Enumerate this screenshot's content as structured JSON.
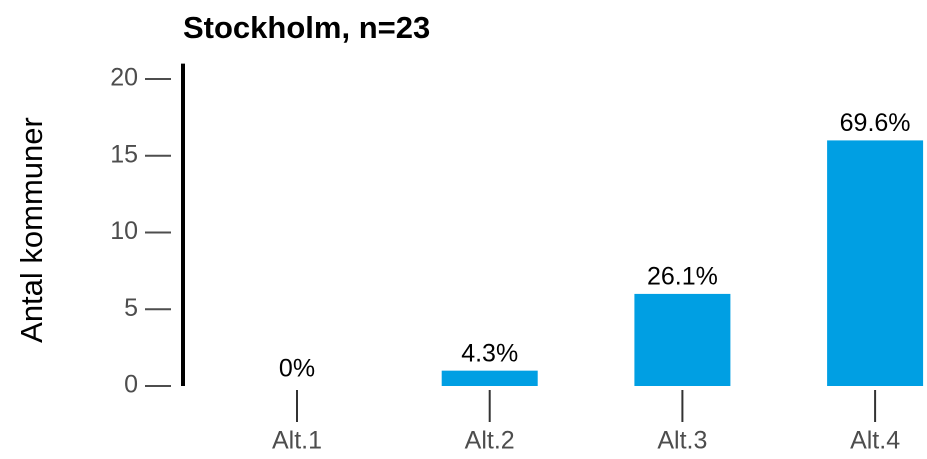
{
  "chart_data": {
    "type": "bar",
    "title": "Stockholm, n=23",
    "y_label": "Antal kommuner",
    "categories": [
      "Alt.1",
      "Alt.2",
      "Alt.3",
      "Alt.4"
    ],
    "values": [
      0,
      1,
      6,
      16
    ],
    "value_labels": [
      "0%",
      "4.3%",
      "26.1%",
      "69.6%"
    ],
    "color": "#009fe3",
    "ylim": [
      0,
      21
    ],
    "yticks": [
      0,
      5,
      10,
      15,
      20
    ]
  }
}
